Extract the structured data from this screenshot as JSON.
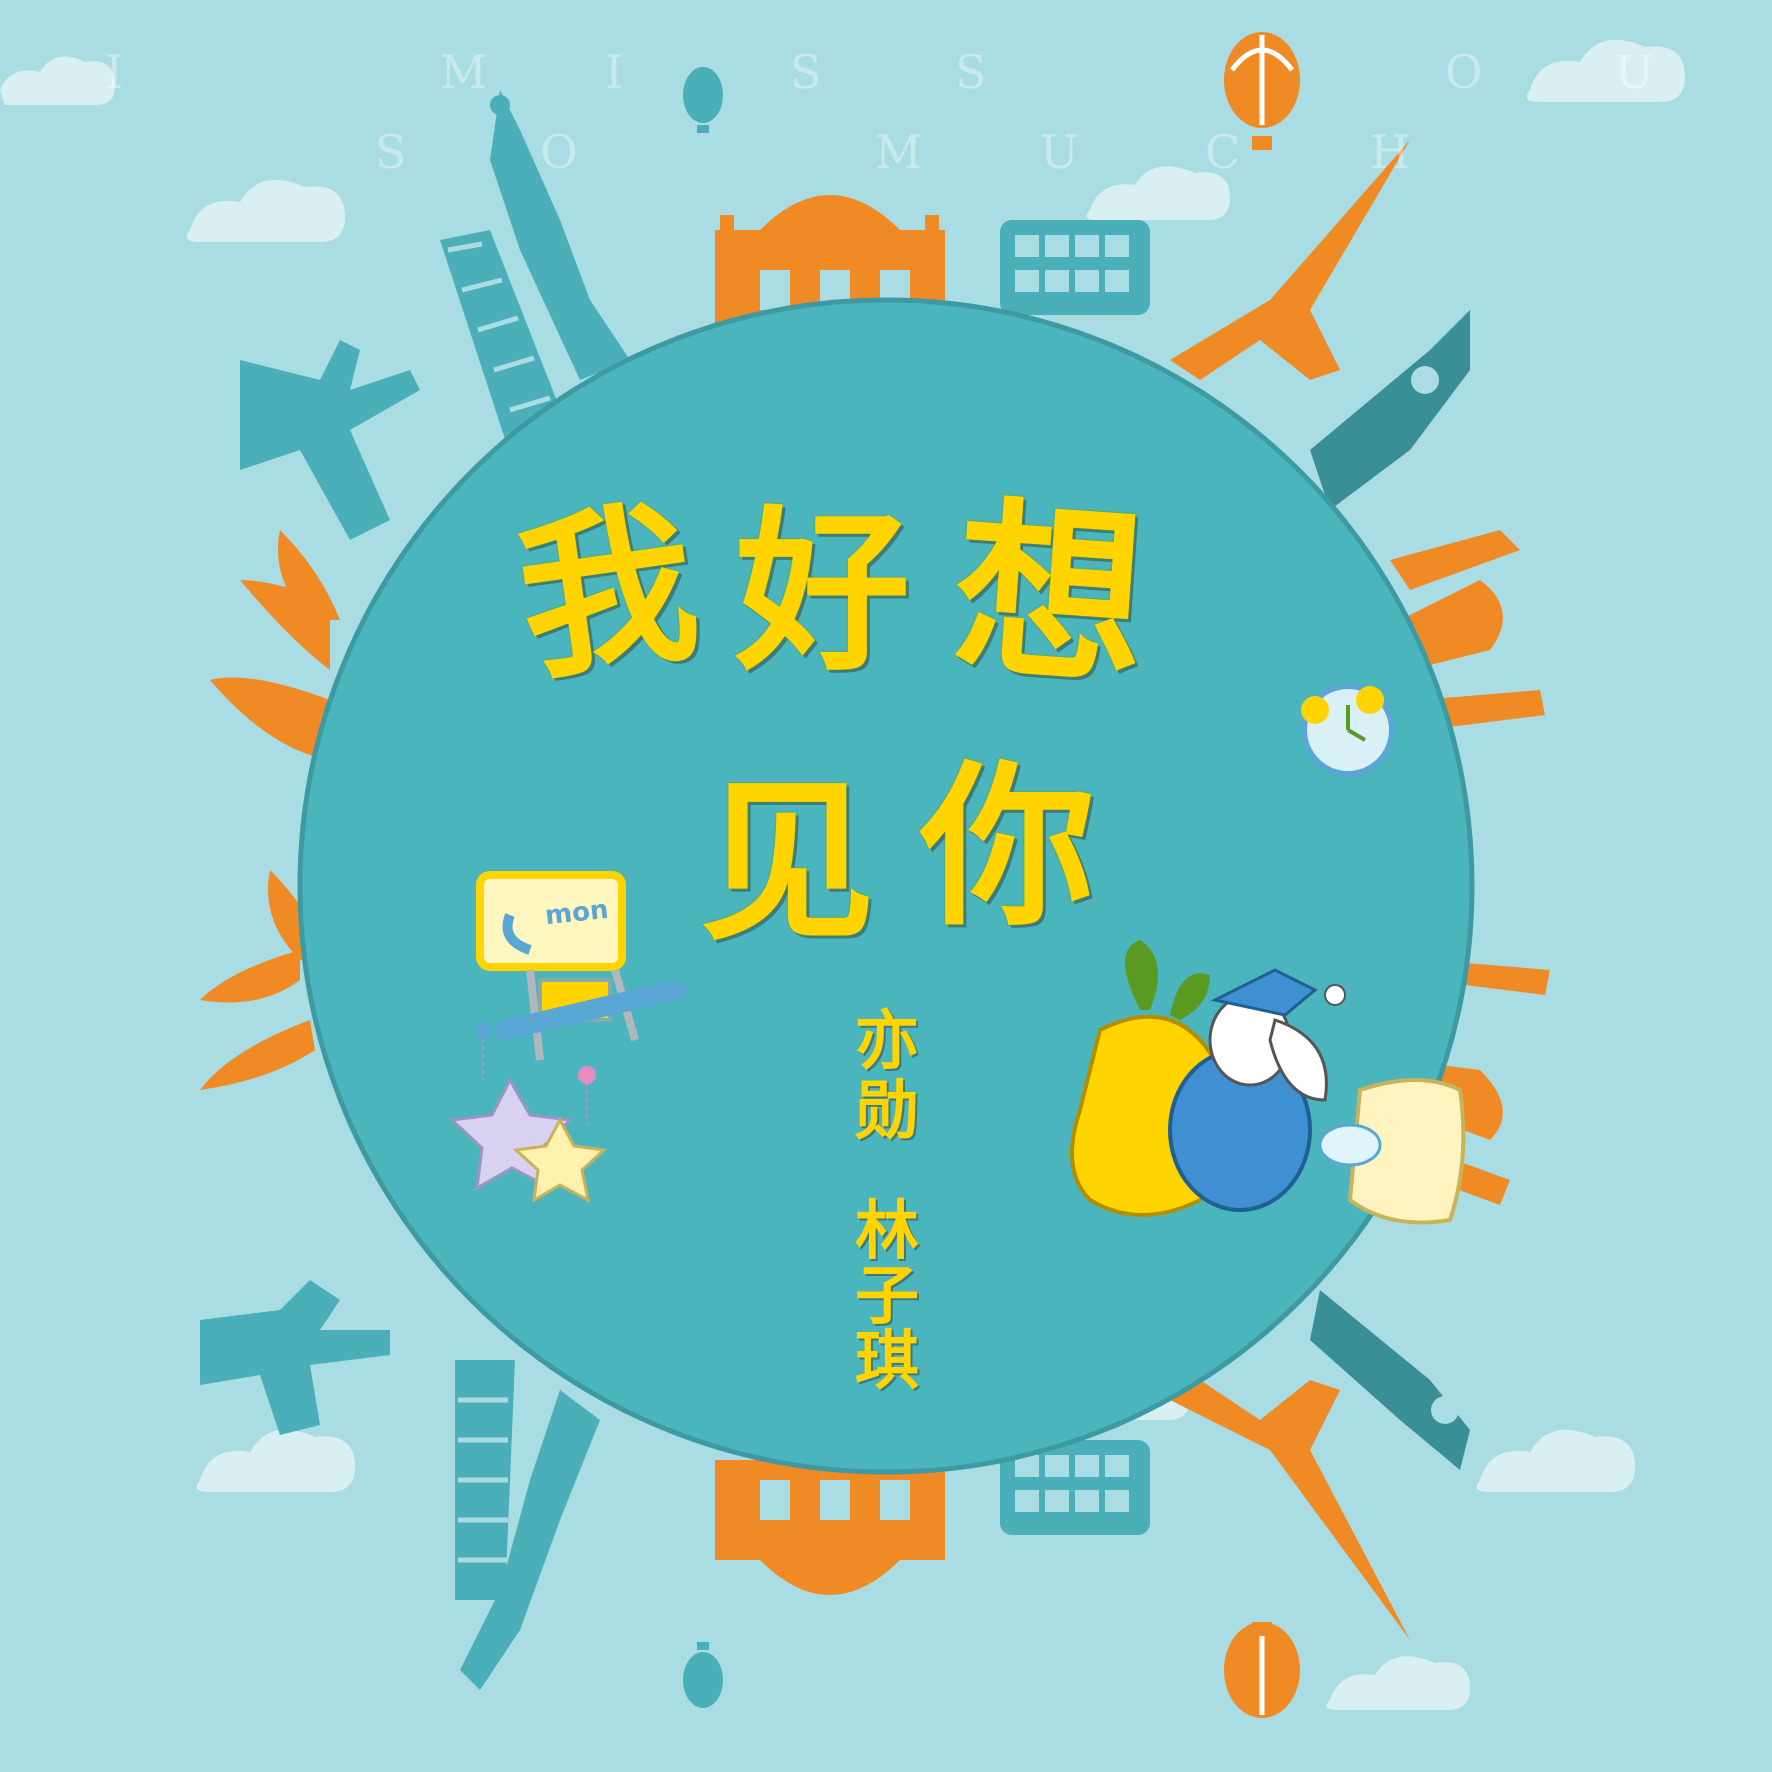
{
  "title_lines": [
    "我好想",
    "见你"
  ],
  "title_chars": [
    "我",
    "好",
    "想",
    "见",
    "你"
  ],
  "artists": [
    "亦勋",
    "林子琪"
  ],
  "artist_chars": {
    "first": [
      "亦",
      "勋"
    ],
    "second": [
      "林",
      "子",
      "琪"
    ]
  },
  "faint_text_line1": [
    "I",
    "M",
    "I",
    "S",
    "S",
    "O",
    "U"
  ],
  "faint_text_line2": [
    "S",
    "O",
    "M",
    "U",
    "C",
    "H"
  ],
  "sign_label": "mon",
  "colors": {
    "background": "#a9dde3",
    "circle": "#4bb5bd",
    "teal_landmarks": "#4aafb8",
    "orange_landmarks": "#f08a24",
    "title": "#ffd400"
  },
  "icons": [
    "cloud-icon",
    "hot-air-balloon-icon",
    "statue-of-liberty-icon",
    "leaning-tower-icon",
    "christ-redeemer-icon",
    "eiffel-tower-icon",
    "big-ben-icon",
    "double-decker-bus-icon",
    "taj-mahal-icon",
    "sydney-opera-house-icon",
    "alarm-clock-icon",
    "star-icon",
    "bunny-icon",
    "pillow-icon",
    "radish-icon",
    "road-sign-icon"
  ]
}
